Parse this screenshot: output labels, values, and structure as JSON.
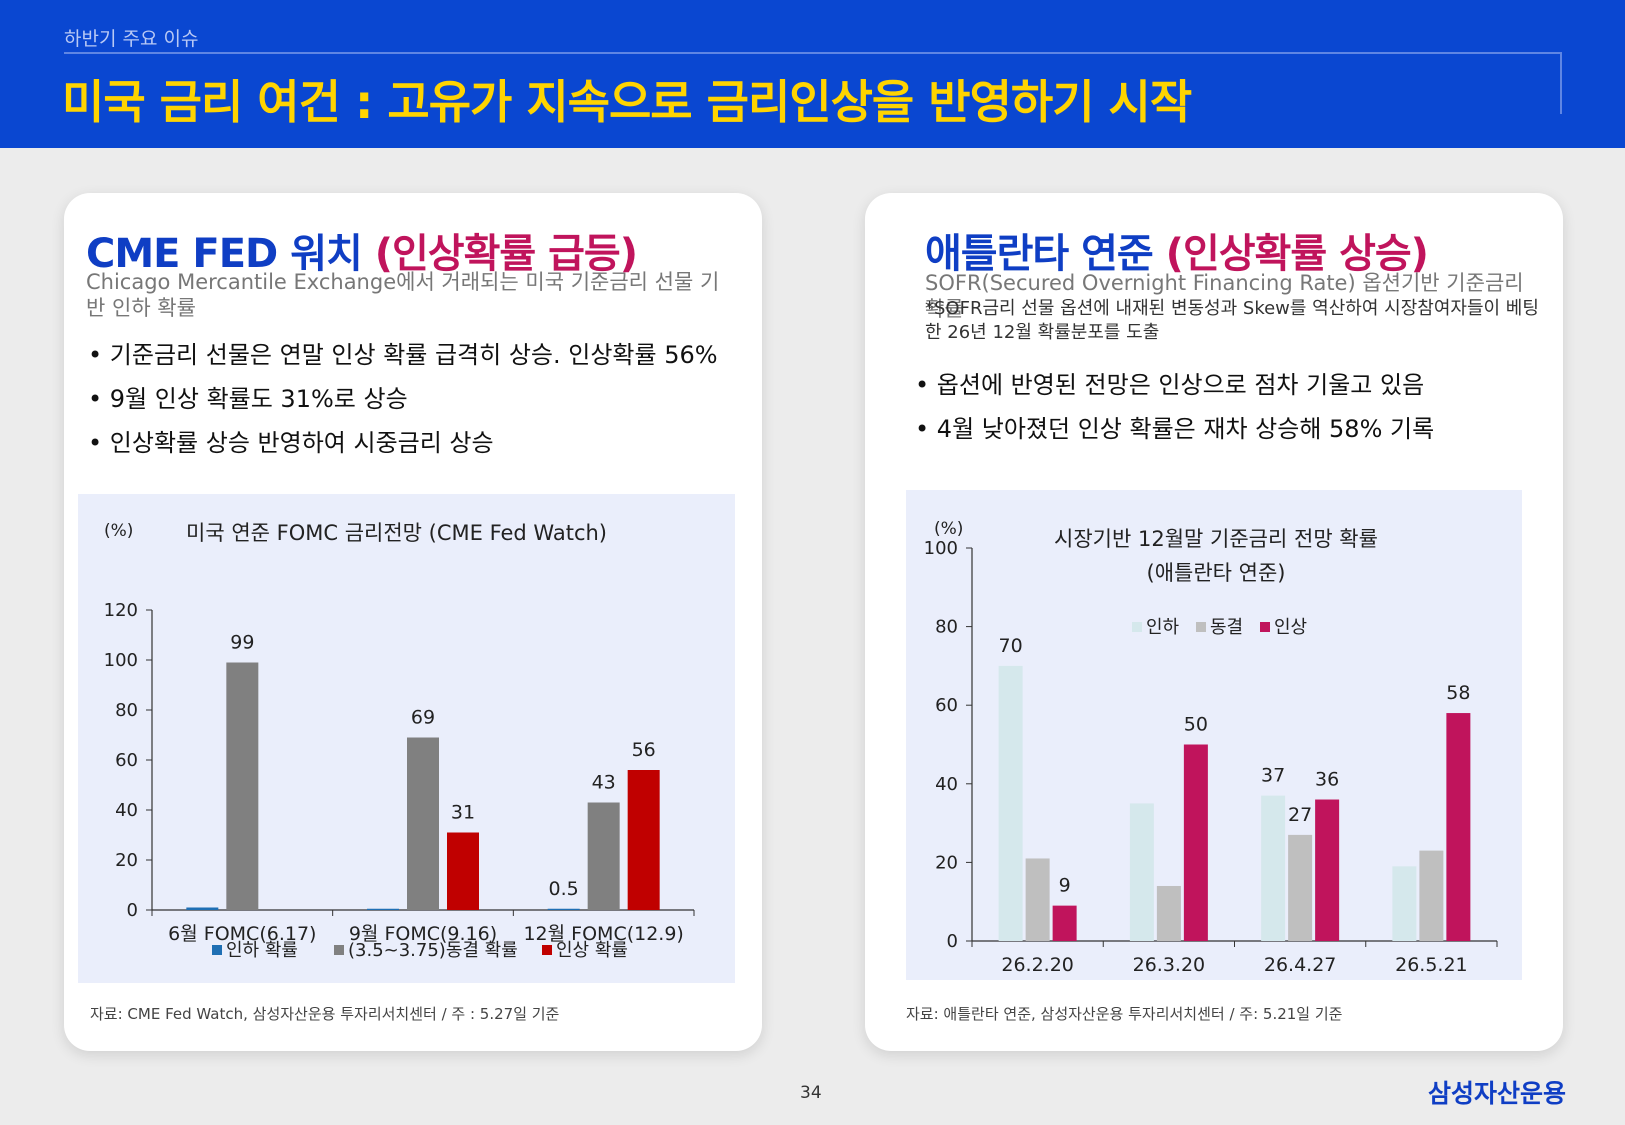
{
  "header": {
    "sub": "하반기 주요 이슈",
    "title_white": "미국 금리 여건 : ",
    "title_yellow": "고유가 지속으로 금리인상을 반영하기 시작"
  },
  "left": {
    "title_a": "CME FED 워치 ",
    "title_b": "(인상확률 급등)",
    "desc": "Chicago Mercantile Exchange에서 거래되는 미국 기준금리 선물 기반 인하 확률",
    "bullets": [
      "기준금리 선물은 연말 인상 확률 급격히 상승. 인상확률 56%",
      "9월 인상 확률도 31%로 상승",
      "인상확률 상승 반영하여 시중금리 상승"
    ],
    "source": "자료: CME Fed Watch, 삼성자산운용 투자리서치센터 / 주 : 5.27일 기준"
  },
  "right": {
    "title_a": "애틀란타 연준 ",
    "title_b": "(인상확률 상승)",
    "desc1": "SOFR(Secured Overnight Financing Rate) 옵션기반 기준금리 확률",
    "desc2": "*SOFR금리 선물 옵션에 내재된 변동성과 Skew를 역산하여 시장참여자들이 베팅한 26년 12월 확률분포를 도출",
    "bullets": [
      "옵션에 반영된 전망은 인상으로 점차 기울고 있음",
      "4월 낮아졌던 인상 확률은 재차 상승해 58% 기록"
    ],
    "source": "자료: 애틀란타 연준, 삼성자산운용 투자리서치센터 / 주: 5.21일 기준"
  },
  "page_number": "34",
  "brand": "삼성자산운용",
  "chart_data": [
    {
      "type": "bar",
      "title": "미국 연준 FOMC 금리전망 (CME Fed Watch)",
      "unit": "(%)",
      "categories": [
        "6월 FOMC(6.17)",
        "9월 FOMC(9.16)",
        "12월 FOMC(12.9)"
      ],
      "series": [
        {
          "name": "인하 확률",
          "color": "#1f6fb4",
          "values": [
            1,
            0.5,
            0.5
          ]
        },
        {
          "name": "(3.5~3.75)동결 확률",
          "color": "#808080",
          "values": [
            99,
            69,
            43
          ]
        },
        {
          "name": "인상 확률",
          "color": "#c00000",
          "values": [
            0,
            31,
            56
          ]
        }
      ],
      "data_labels": [
        [
          null,
          null,
          "0.5"
        ],
        [
          "99",
          "69",
          "43"
        ],
        [
          null,
          "31",
          "56"
        ]
      ],
      "ylim": [
        0,
        120
      ],
      "yticks": [
        0,
        20,
        40,
        60,
        80,
        100,
        120
      ],
      "grid": false,
      "legend": "bottom"
    },
    {
      "type": "bar",
      "title": "시장기반 12월말 기준금리 전망 확률",
      "subtitle": "(애틀란타 연준)",
      "unit": "(%)",
      "categories": [
        "26.2.20",
        "26.3.20",
        "26.4.27",
        "26.5.21"
      ],
      "series": [
        {
          "name": "인하",
          "color": "#d5e8ec",
          "values": [
            70,
            35,
            37,
            19
          ]
        },
        {
          "name": "동결",
          "color": "#bfbfbf",
          "values": [
            21,
            14,
            27,
            23
          ]
        },
        {
          "name": "인상",
          "color": "#c0145c",
          "values": [
            9,
            50,
            36,
            58
          ]
        }
      ],
      "data_labels": [
        [
          "70",
          null,
          "37",
          null
        ],
        [
          null,
          null,
          "27",
          null
        ],
        [
          "9",
          "50",
          "36",
          "58"
        ]
      ],
      "ylim": [
        0,
        100
      ],
      "yticks": [
        0,
        20,
        40,
        60,
        80,
        100
      ],
      "grid": false,
      "legend": "top-center"
    }
  ]
}
